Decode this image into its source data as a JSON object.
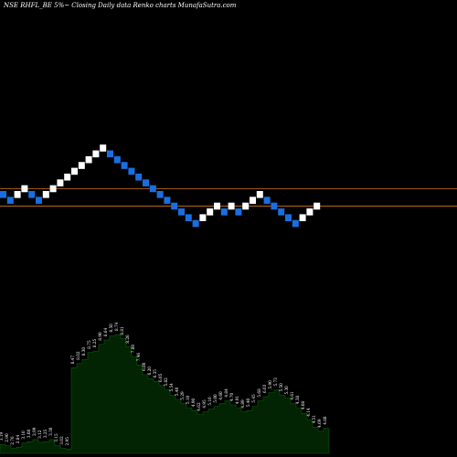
{
  "title": "NSE RHFL_BE 5%~  Closing Daily data  Renko  charts MunafaSutra.com",
  "colors": {
    "background": "#000000",
    "up_brick": "#ffffff",
    "down_brick": "#1a6ee0",
    "reference_line": "#b5651d",
    "volume_fill": "#022402",
    "volume_stroke": "#0b5a0b",
    "label_text": "#ffffff"
  },
  "chart_data": [
    {
      "type": "renko",
      "brick_percent": "5%",
      "reference_lines": [
        1,
        -2
      ],
      "bricks": [
        {
          "dir": "down",
          "level": 0
        },
        {
          "dir": "down",
          "level": -1
        },
        {
          "dir": "up",
          "level": 0
        },
        {
          "dir": "up",
          "level": 1
        },
        {
          "dir": "down",
          "level": 0
        },
        {
          "dir": "down",
          "level": -1
        },
        {
          "dir": "up",
          "level": 0
        },
        {
          "dir": "up",
          "level": 1
        },
        {
          "dir": "up",
          "level": 2
        },
        {
          "dir": "up",
          "level": 3
        },
        {
          "dir": "up",
          "level": 4
        },
        {
          "dir": "up",
          "level": 5
        },
        {
          "dir": "up",
          "level": 6
        },
        {
          "dir": "up",
          "level": 7
        },
        {
          "dir": "up",
          "level": 8
        },
        {
          "dir": "down",
          "level": 7
        },
        {
          "dir": "down",
          "level": 6
        },
        {
          "dir": "down",
          "level": 5
        },
        {
          "dir": "down",
          "level": 4
        },
        {
          "dir": "down",
          "level": 3
        },
        {
          "dir": "down",
          "level": 2
        },
        {
          "dir": "down",
          "level": 1
        },
        {
          "dir": "down",
          "level": 0
        },
        {
          "dir": "down",
          "level": -1
        },
        {
          "dir": "down",
          "level": -2
        },
        {
          "dir": "down",
          "level": -3
        },
        {
          "dir": "down",
          "level": -4
        },
        {
          "dir": "down",
          "level": -5
        },
        {
          "dir": "up",
          "level": -4
        },
        {
          "dir": "up",
          "level": -3
        },
        {
          "dir": "up",
          "level": -2
        },
        {
          "dir": "down",
          "level": -3
        },
        {
          "dir": "up",
          "level": -2
        },
        {
          "dir": "down",
          "level": -3
        },
        {
          "dir": "up",
          "level": -2
        },
        {
          "dir": "up",
          "level": -1
        },
        {
          "dir": "up",
          "level": 0
        },
        {
          "dir": "down",
          "level": -1
        },
        {
          "dir": "down",
          "level": -2
        },
        {
          "dir": "down",
          "level": -3
        },
        {
          "dir": "down",
          "level": -4
        },
        {
          "dir": "down",
          "level": -5
        },
        {
          "dir": "up",
          "level": -4
        },
        {
          "dir": "up",
          "level": -3
        },
        {
          "dir": "up",
          "level": -2
        }
      ]
    },
    {
      "type": "area",
      "ylim": [
        0,
        9
      ],
      "labels": [
        "3.19",
        "2.90",
        "2.76",
        "2.84",
        "3.10",
        "3.08",
        "2.99",
        "3.12",
        "3.25",
        "3.30",
        "3.15",
        "3.02",
        "2.95",
        "8.47",
        "8.02",
        "8.30",
        "8.75",
        "8.25",
        "8.90",
        "8.64",
        "8.50",
        "8.74",
        "8.81",
        "8.26",
        "7.80",
        "7.46",
        "6.80",
        "6.20",
        "6.35",
        "6.05",
        "5.82",
        "5.54",
        "5.40",
        "5.29",
        "5.10",
        "4.90",
        "4.62",
        "4.95",
        "5.10",
        "5.00",
        "4.60",
        "4.84",
        "4.70",
        "4.91",
        "4.89",
        "5.40",
        "5.45",
        "5.68",
        "6.03",
        "5.90",
        "5.73",
        "5.50",
        "5.30",
        "4.61",
        "4.38",
        "4.08",
        "4.14",
        "4.51",
        "4.69",
        "4.88"
      ],
      "values": [
        0.65,
        0.55,
        0.35,
        0.45,
        0.75,
        0.85,
        1.0,
        0.8,
        0.85,
        1.0,
        0.55,
        0.35,
        0.3,
        6.2,
        6.5,
        6.8,
        7.3,
        7.4,
        7.9,
        8.2,
        8.5,
        8.6,
        8.3,
        7.7,
        7.0,
        6.4,
        5.7,
        5.4,
        5.2,
        4.9,
        4.6,
        4.2,
        3.9,
        3.6,
        3.3,
        3.1,
        2.8,
        3.0,
        3.2,
        3.4,
        3.6,
        3.8,
        3.5,
        3.3,
        3.0,
        3.1,
        3.4,
        3.8,
        4.1,
        4.4,
        4.6,
        4.2,
        4.0,
        3.6,
        3.3,
        2.9,
        2.4,
        1.9,
        1.6,
        1.8
      ]
    }
  ]
}
